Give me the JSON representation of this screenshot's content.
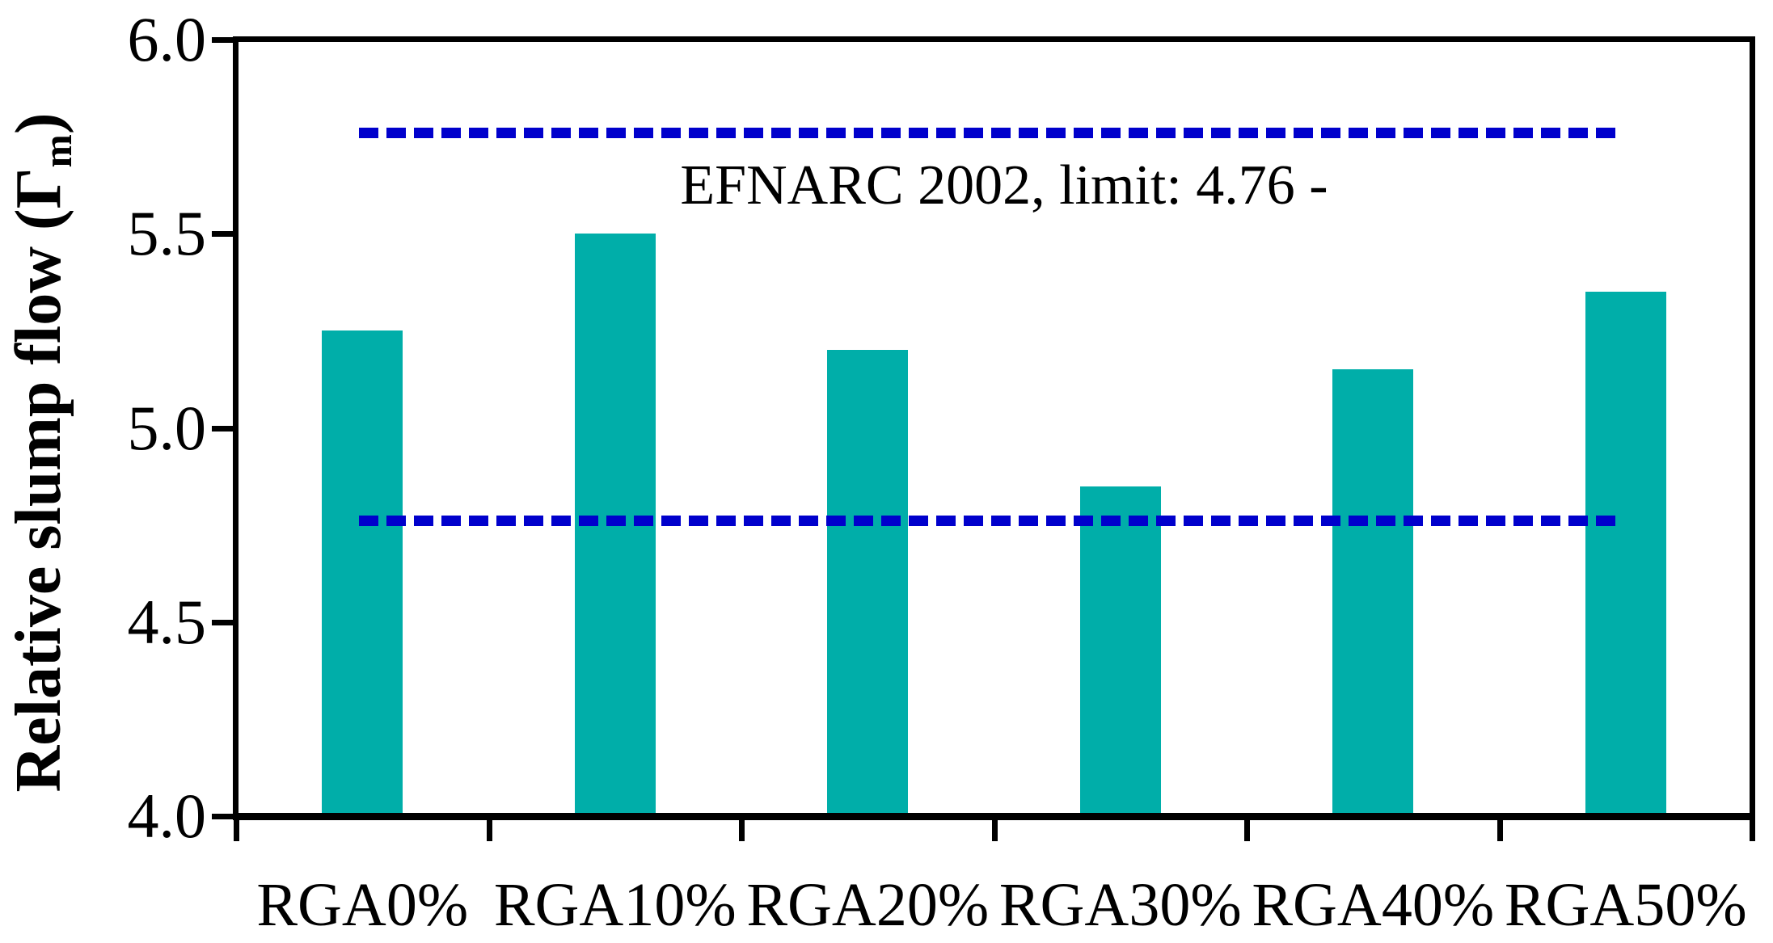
{
  "chart_data": {
    "type": "bar",
    "title": "",
    "categories": [
      "RGA0%",
      "RGA10%",
      "RGA20%",
      "RGA30%",
      "RGA40%",
      "RGA50%"
    ],
    "values": [
      5.25,
      5.5,
      5.2,
      4.85,
      5.15,
      5.35
    ],
    "xlabel": "",
    "ylabel_main": "Relative slump flow (Γ",
    "ylabel_subscript": "m",
    "ylabel_suffix": ")",
    "ylim": [
      4.0,
      6.0
    ],
    "ytick_values": [
      6.0,
      5.5,
      5.0,
      4.5,
      4.0
    ],
    "ytick_labels": [
      "6.0",
      "5.5",
      "5.0",
      "4.5",
      "4.0"
    ],
    "grid": false,
    "legend_position": "none",
    "bar_color": "#00AEA9",
    "axis_color": "#000000",
    "limit_lines": [
      {
        "value": 5.76,
        "style": "dashed",
        "color": "#0000CC"
      },
      {
        "value": 4.76,
        "style": "dashed",
        "color": "#0000CC"
      }
    ],
    "annotation": {
      "text": "EFNARC 2002, limit: 4.76 -",
      "color": "#000000"
    }
  }
}
